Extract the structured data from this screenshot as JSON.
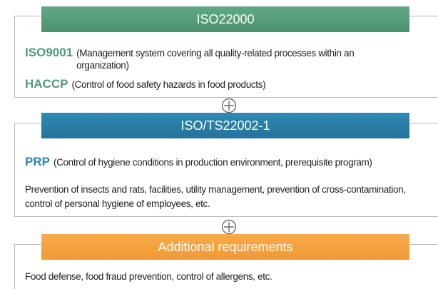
{
  "sections": [
    {
      "title": "ISO22000",
      "items": [
        {
          "term": "ISO9001",
          "description": "(Management system covering all quality-related processes within an organization)"
        },
        {
          "term": "HACCP",
          "description": "(Control of food safety hazards in food products)"
        }
      ]
    },
    {
      "title": "ISO/TS22002-1",
      "items": [
        {
          "term": "PRP",
          "description": "(Control of hygiene conditions in production environment, prerequisite program)"
        }
      ],
      "note": "Prevention of insects and rats, facilities, utility management, prevention of cross-contamination, control of personal hygiene of employees, etc."
    },
    {
      "title": "Additional requirements",
      "note": "Food defense, food fraud prevention, control of allergens, etc."
    }
  ]
}
